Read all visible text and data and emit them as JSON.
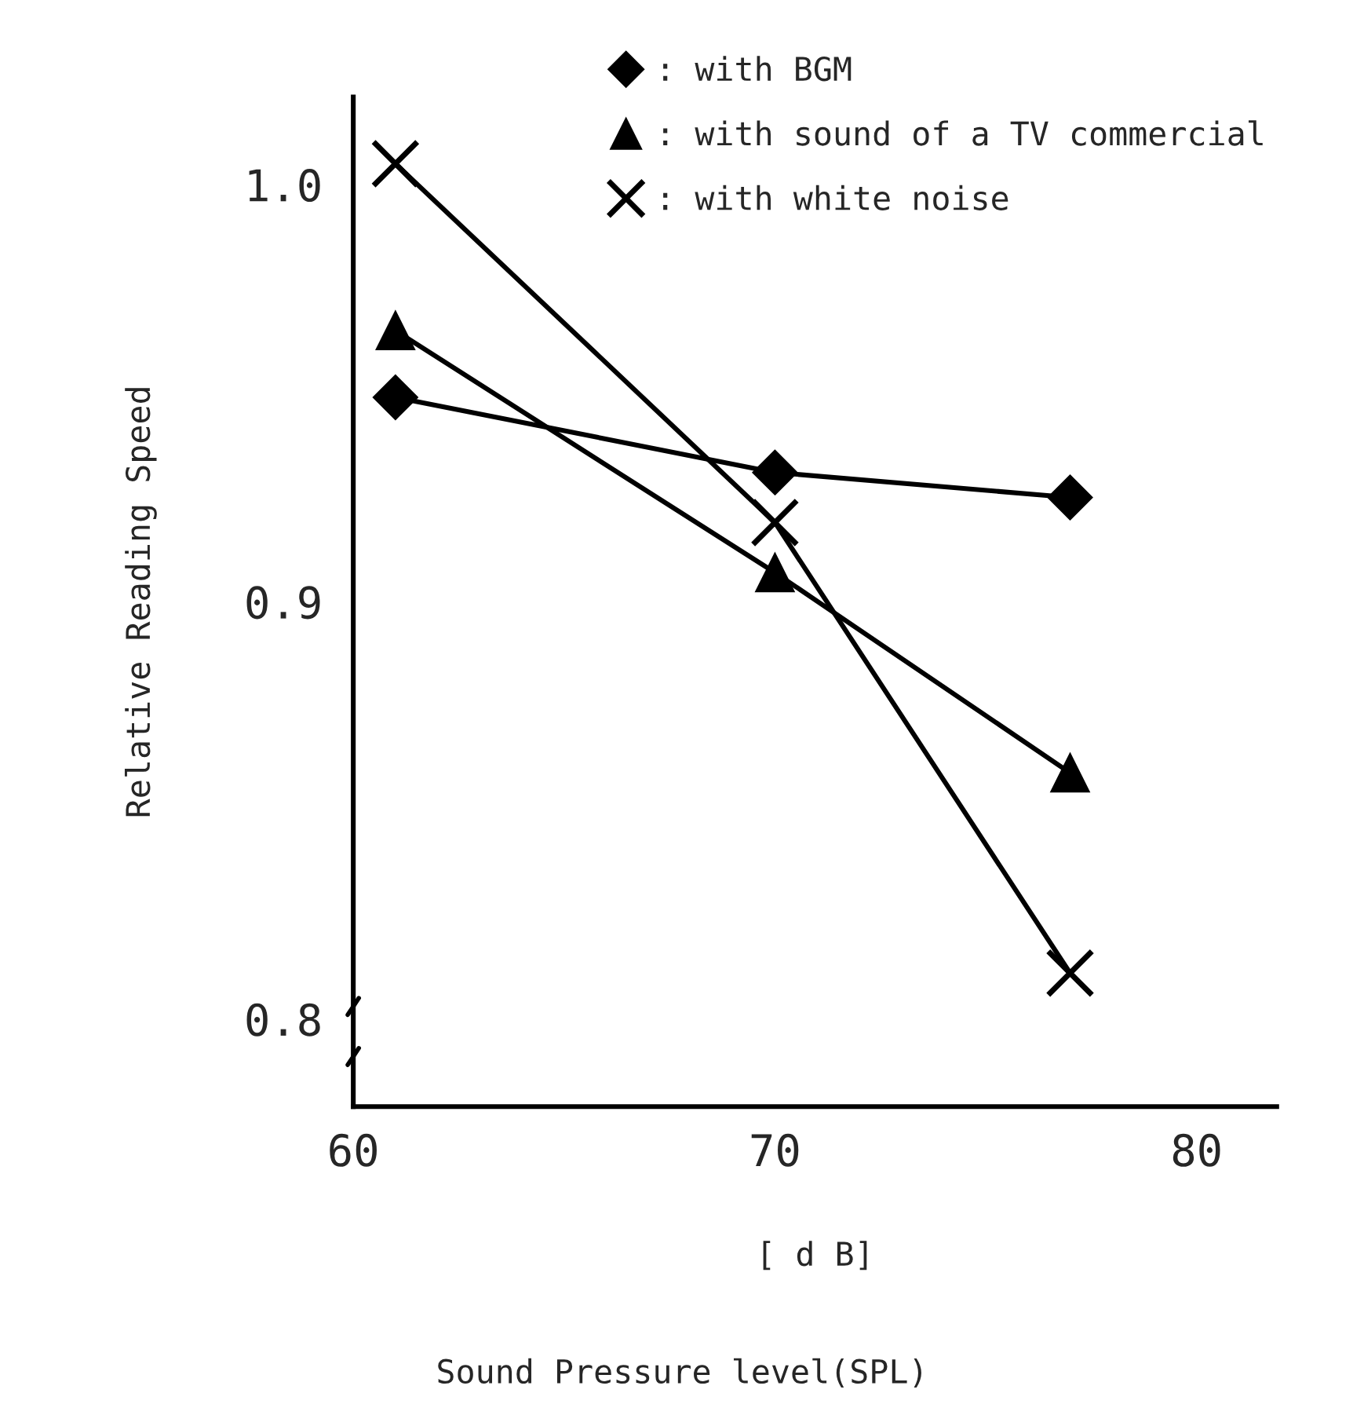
{
  "chart_data": {
    "type": "line",
    "xlabel": "[ d B]",
    "ylabel": "Relative Reading Speed",
    "x": [
      61,
      70,
      77
    ],
    "series": [
      {
        "name": ": with BGM",
        "color": "#000000",
        "marker": "diamond",
        "values": [
          0.949,
          0.931,
          0.925
        ]
      },
      {
        "name": ": with sound of a TV commercial",
        "color": "#000000",
        "marker": "triangle",
        "values": [
          0.965,
          0.907,
          0.859
        ]
      },
      {
        "name": ": with white noise",
        "color": "#000000",
        "marker": "cross",
        "values": [
          1.005,
          0.919,
          0.811
        ]
      }
    ],
    "xlim": [
      60,
      81.9
    ],
    "xticks": [
      60,
      70,
      80
    ],
    "ylim": [
      0.779,
      1.021
    ],
    "yticks": [
      0.8,
      0.9,
      {
        "value": 1.0,
        "label": "1.0"
      }
    ],
    "annotations": [
      "Sound Pressure level(SPL)"
    ],
    "grid": false,
    "legend": "top right",
    "line_style": "solid"
  }
}
